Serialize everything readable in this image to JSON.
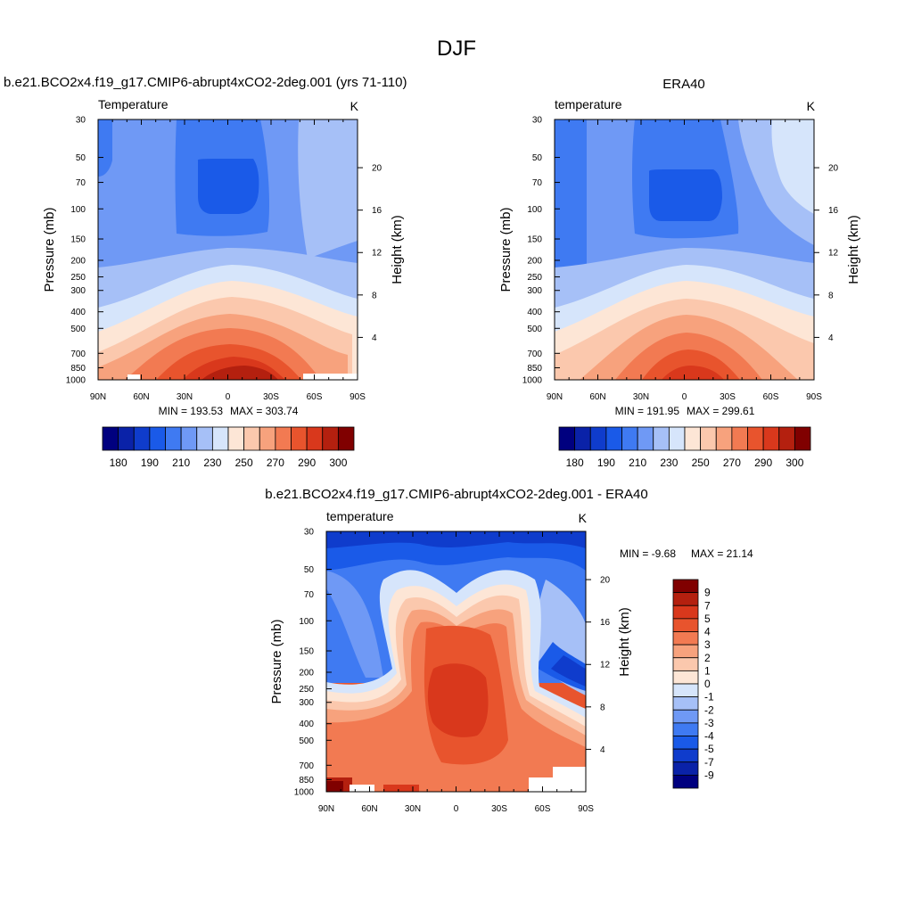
{
  "figure": {
    "season": "DJF"
  },
  "chart_data": [
    {
      "type": "heatmap",
      "title": "b.e21.BCO2x4.f19_g17.CMIP6-abrupt4xCO2-2deg.001 (yrs 71-110)",
      "variable": "Temperature",
      "units": "K",
      "xlabel": "",
      "ylabel": "Pressure (mb)",
      "ylabel_right": "Height (km)",
      "x_ticks": [
        "90N",
        "60N",
        "30N",
        "0",
        "30S",
        "60S",
        "90S"
      ],
      "x_range": [
        90,
        -90
      ],
      "pressure_ticks": [
        30,
        50,
        70,
        100,
        150,
        200,
        250,
        300,
        400,
        500,
        700,
        850,
        1000
      ],
      "height_ticks": [
        4,
        8,
        12,
        16,
        20
      ],
      "min_label": "MIN = 193.53",
      "max_label": "MAX = 303.74",
      "min": 193.53,
      "max": 303.74,
      "colorbar": {
        "orientation": "horizontal",
        "levels": [
          180,
          190,
          210,
          230,
          250,
          270,
          290,
          300
        ],
        "colors": [
          "#00007f",
          "#0a22a8",
          "#0f3ccc",
          "#1a5ae8",
          "#3f7af2",
          "#6f99f5",
          "#a6c0f7",
          "#d6e5fb",
          "#fde6d6",
          "#fbc8ad",
          "#f7a27d",
          "#f27a52",
          "#e8542d",
          "#d9381c",
          "#b4200f",
          "#800000"
        ]
      }
    },
    {
      "type": "heatmap",
      "title": "ERA40",
      "variable": "temperature",
      "units": "K",
      "xlabel": "",
      "ylabel": "Pressure (mb)",
      "ylabel_right": "Height (km)",
      "x_ticks": [
        "90N",
        "60N",
        "30N",
        "0",
        "30S",
        "60S",
        "90S"
      ],
      "x_range": [
        90,
        -90
      ],
      "pressure_ticks": [
        30,
        50,
        70,
        100,
        150,
        200,
        250,
        300,
        400,
        500,
        700,
        850,
        1000
      ],
      "height_ticks": [
        4,
        8,
        12,
        16,
        20
      ],
      "min_label": "MIN = 191.95",
      "max_label": "MAX = 299.61",
      "min": 191.95,
      "max": 299.61,
      "colorbar": {
        "orientation": "horizontal",
        "levels": [
          180,
          190,
          210,
          230,
          250,
          270,
          290,
          300
        ],
        "colors": [
          "#00007f",
          "#0a22a8",
          "#0f3ccc",
          "#1a5ae8",
          "#3f7af2",
          "#6f99f5",
          "#a6c0f7",
          "#d6e5fb",
          "#fde6d6",
          "#fbc8ad",
          "#f7a27d",
          "#f27a52",
          "#e8542d",
          "#d9381c",
          "#b4200f",
          "#800000"
        ]
      }
    },
    {
      "type": "heatmap",
      "title": "b.e21.BCO2x4.f19_g17.CMIP6-abrupt4xCO2-2deg.001 - ERA40",
      "variable": "temperature",
      "units": "K",
      "xlabel": "",
      "ylabel": "Pressure (mb)",
      "ylabel_right": "Height (km)",
      "x_ticks": [
        "90N",
        "60N",
        "30N",
        "0",
        "30S",
        "60S",
        "90S"
      ],
      "x_range": [
        90,
        -90
      ],
      "pressure_ticks": [
        30,
        50,
        70,
        100,
        150,
        200,
        250,
        300,
        400,
        500,
        700,
        850,
        1000
      ],
      "height_ticks": [
        4,
        8,
        12,
        16,
        20
      ],
      "min_label": "MIN =  -9.68",
      "max_label": "MAX =  21.14",
      "min": -9.68,
      "max": 21.14,
      "colorbar": {
        "orientation": "vertical",
        "levels": [
          9,
          7,
          5,
          4,
          3,
          2,
          1,
          0,
          -1,
          -2,
          -3,
          -4,
          -5,
          -7,
          -9
        ],
        "colors": [
          "#800000",
          "#b4200f",
          "#d9381c",
          "#e8542d",
          "#f27a52",
          "#f7a27d",
          "#fbc8ad",
          "#fde6d6",
          "#d6e5fb",
          "#a6c0f7",
          "#6f99f5",
          "#3f7af2",
          "#1a5ae8",
          "#0f3ccc",
          "#0a22a8",
          "#00007f"
        ]
      }
    }
  ]
}
